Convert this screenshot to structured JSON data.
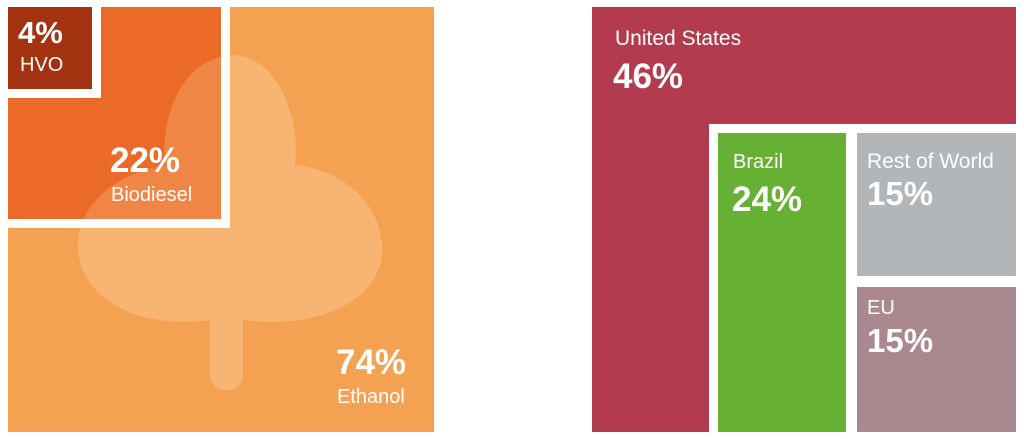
{
  "chart_data": [
    {
      "type": "treemap",
      "title": "",
      "series": [
        {
          "name": "Ethanol",
          "value": 74,
          "value_label": "74%",
          "color": "#f4a152"
        },
        {
          "name": "Biodiesel",
          "value": 22,
          "value_label": "22%",
          "color": "#ec6a27"
        },
        {
          "name": "HVO",
          "value": 4,
          "value_label": "4%",
          "color": "#a33211"
        }
      ],
      "decoration": "leaf-icon"
    },
    {
      "type": "treemap",
      "title": "",
      "series": [
        {
          "name": "United States",
          "value": 46,
          "value_label": "46%",
          "color": "#b23b4e"
        },
        {
          "name": "Brazil",
          "value": 24,
          "value_label": "24%",
          "color": "#66b134"
        },
        {
          "name": "Rest of World",
          "value": 15,
          "value_label": "15%",
          "color": "#b3b6b9"
        },
        {
          "name": "EU",
          "value": 15,
          "value_label": "15%",
          "color": "#a9888f"
        }
      ]
    }
  ]
}
